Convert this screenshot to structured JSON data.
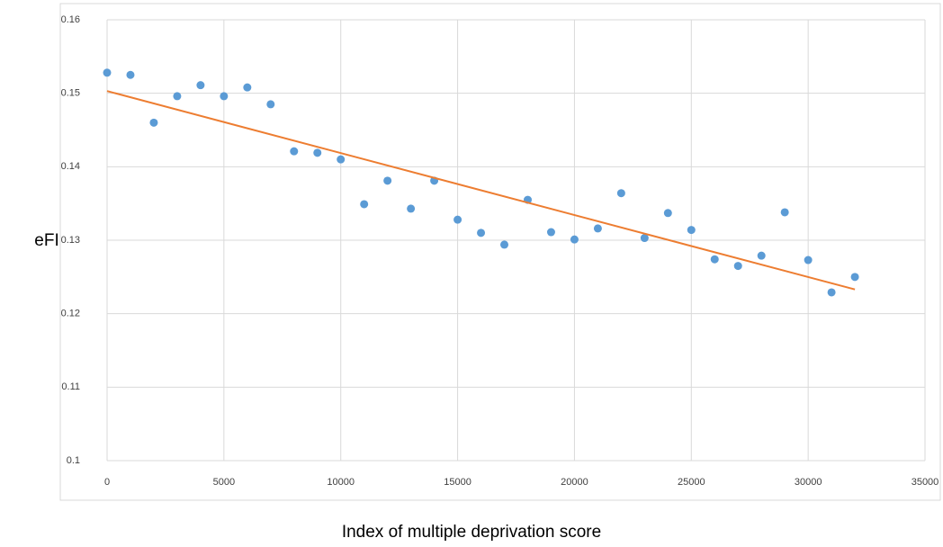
{
  "chart_data": {
    "type": "scatter",
    "x_label": "Index of multiple deprivation score",
    "y_label": "eFI",
    "xlim": [
      0,
      35000
    ],
    "xticks": [
      0,
      5000,
      10000,
      15000,
      20000,
      25000,
      30000,
      35000
    ],
    "ylim": [
      0.1,
      0.16
    ],
    "yticks": [
      0.1,
      0.11,
      0.12,
      0.13,
      0.14,
      0.15,
      0.16
    ],
    "grid": true,
    "series": [
      {
        "color": "#5b9bd5",
        "x": [
          0,
          1000,
          2000,
          3000,
          4000,
          5000,
          6000,
          7000,
          8000,
          9000,
          10000,
          11000,
          12000,
          13000,
          14000,
          15000,
          16000,
          17000,
          18000,
          19000,
          20000,
          21000,
          22000,
          23000,
          24000,
          25000,
          26000,
          27000,
          28000,
          29000,
          30000,
          31000,
          32000
        ],
        "values": [
          0.1528,
          0.1525,
          0.146,
          0.1496,
          0.1511,
          0.1496,
          0.1508,
          0.1485,
          0.1421,
          0.1419,
          0.141,
          0.1349,
          0.1381,
          0.1343,
          0.1381,
          0.1328,
          0.131,
          0.1294,
          0.1355,
          0.1311,
          0.1301,
          0.1316,
          0.1364,
          0.1303,
          0.1337,
          0.1314,
          0.1274,
          0.1265,
          0.1279,
          0.1338,
          0.1273,
          0.1229,
          0.125
        ]
      }
    ],
    "trendline": {
      "color": "#ed7d31",
      "x": [
        0,
        32000
      ],
      "values": [
        0.1503,
        0.1233
      ]
    }
  }
}
